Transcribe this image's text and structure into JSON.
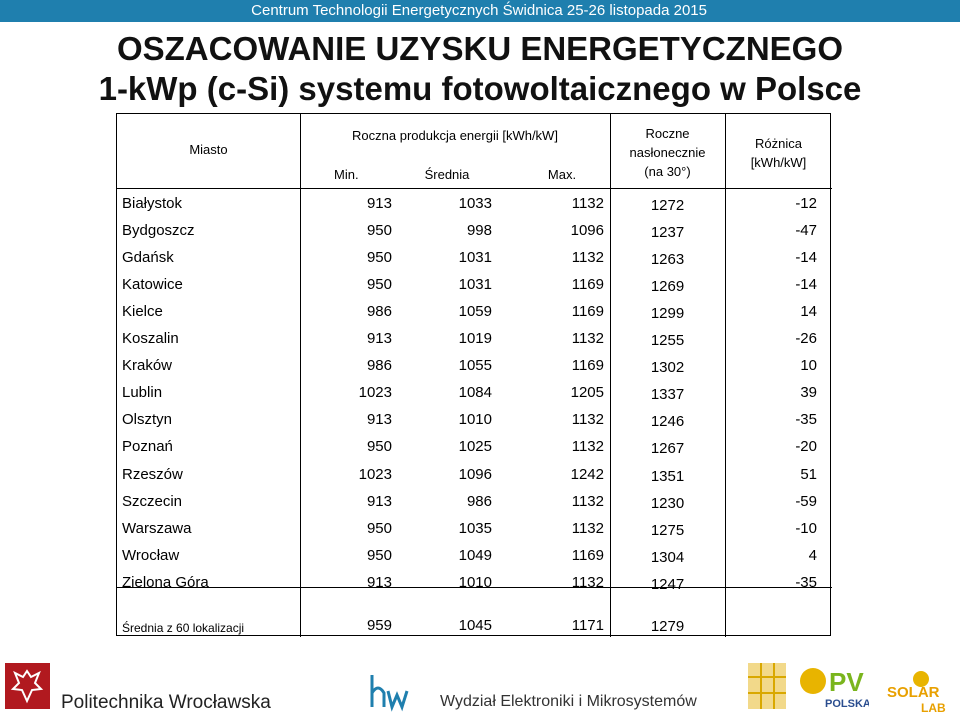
{
  "header": {
    "event": "Centrum Technologii Energetycznych Świdnica 25-26 listopada 2015"
  },
  "title": {
    "line1": "OSZACOWANIE UZYSKU ENERGETYCZNEGO",
    "line2": "1-kWp (c-Si) systemu fotowoltaicznego w Polsce"
  },
  "table": {
    "headers": {
      "city": "Miasto",
      "annual_production": "Roczna produkcja energii [kWh/kW]",
      "min": "Min.",
      "avg": "Średnia",
      "max": "Max.",
      "insolation_l1": "Roczne",
      "insolation_l2": "nasłonecznie",
      "insolation_l3": "(na 30°)",
      "diff_l1": "Różnica",
      "diff_l2": "[kWh/kW]"
    },
    "rows": [
      {
        "city": "Białystok",
        "min": "913",
        "avg": "1033",
        "max": "1132",
        "ins": "1272",
        "diff": "-12"
      },
      {
        "city": "Bydgoszcz",
        "min": "950",
        "avg": "998",
        "max": "1096",
        "ins": "1237",
        "diff": "-47"
      },
      {
        "city": "Gdańsk",
        "min": "950",
        "avg": "1031",
        "max": "1132",
        "ins": "1263",
        "diff": "-14"
      },
      {
        "city": "Katowice",
        "min": "950",
        "avg": "1031",
        "max": "1169",
        "ins": "1269",
        "diff": "-14"
      },
      {
        "city": "Kielce",
        "min": "986",
        "avg": "1059",
        "max": "1169",
        "ins": "1299",
        "diff": "14"
      },
      {
        "city": "Koszalin",
        "min": "913",
        "avg": "1019",
        "max": "1132",
        "ins": "1255",
        "diff": "-26"
      },
      {
        "city": "Kraków",
        "min": "986",
        "avg": "1055",
        "max": "1169",
        "ins": "1302",
        "diff": "10"
      },
      {
        "city": "Lublin",
        "min": "1023",
        "avg": "1084",
        "max": "1205",
        "ins": "1337",
        "diff": "39"
      },
      {
        "city": "Olsztyn",
        "min": "913",
        "avg": "1010",
        "max": "1132",
        "ins": "1246",
        "diff": "-35"
      },
      {
        "city": "Poznań",
        "min": "950",
        "avg": "1025",
        "max": "1132",
        "ins": "1267",
        "diff": "-20"
      },
      {
        "city": "Rzeszów",
        "min": "1023",
        "avg": "1096",
        "max": "1242",
        "ins": "1351",
        "diff": "51"
      },
      {
        "city": "Szczecin",
        "min": "913",
        "avg": "986",
        "max": "1132",
        "ins": "1230",
        "diff": "-59"
      },
      {
        "city": "Warszawa",
        "min": "950",
        "avg": "1035",
        "max": "1132",
        "ins": "1275",
        "diff": "-10"
      },
      {
        "city": "Wrocław",
        "min": "950",
        "avg": "1049",
        "max": "1169",
        "ins": "1304",
        "diff": "4"
      },
      {
        "city": "Zielona Góra",
        "min": "913",
        "avg": "1010",
        "max": "1132",
        "ins": "1247",
        "diff": "-35"
      }
    ],
    "summary": {
      "label": "Średnia z 60 lokalizacji",
      "min": "959",
      "avg": "1045",
      "max": "1171",
      "ins": "1279"
    }
  },
  "footer": {
    "university": "Politechnika Wrocławska",
    "faculty": "Wydział Elektroniki i Mikrosystemów",
    "pv_logo_top": "PV",
    "pv_logo_bottom": "POLSKA",
    "solarlab_top": "SOLAR",
    "solarlab_bottom": "LAB",
    "colors": {
      "topbar": "#1f7fae",
      "pwr_red": "#b1191f",
      "pv_green": "#7ab51d",
      "solar_yellow": "#e8b400"
    },
    "icons": [
      "pwr-eagle-icon",
      "hw-logo-icon",
      "solar-panel-icon",
      "pv-polska-logo",
      "solarlab-logo"
    ]
  }
}
